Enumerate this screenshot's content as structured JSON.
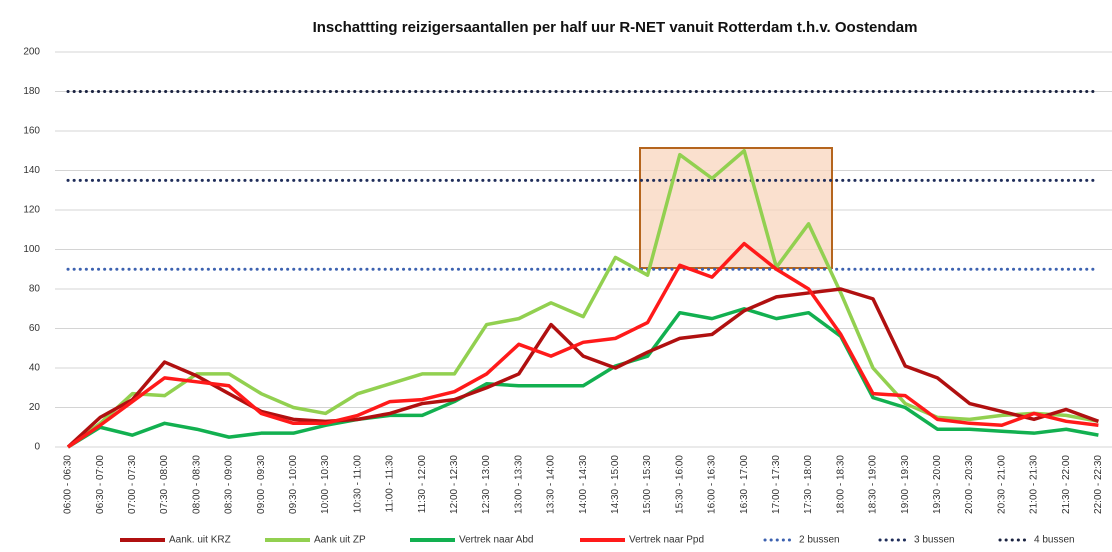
{
  "chart_data": {
    "type": "line",
    "title": "Inschattting reizigersaantallen per half uur R-NET vanuit Rotterdam t.h.v. Oostendam",
    "categories": [
      "06:00 - 06:30",
      "06:30 - 07:00",
      "07:00 - 07:30",
      "07:30 - 08:00",
      "08:00 - 08:30",
      "08:30 - 09:00",
      "09:00 - 09:30",
      "09:30 - 10:00",
      "10:00 - 10:30",
      "10:30 - 11:00",
      "11:00 - 11:30",
      "11:30 - 12:00",
      "12:00 - 12:30",
      "12:30 - 13:00",
      "13:00 - 13:30",
      "13:30 - 14:00",
      "14:00 - 14:30",
      "14:30 - 15:00",
      "15:00 - 15:30",
      "15:30 - 16:00",
      "16:00 - 16:30",
      "16:30 - 17:00",
      "17:00 - 17:30",
      "17:30 - 18:00",
      "18:00 - 18:30",
      "18:30 - 19:00",
      "19:00 - 19:30",
      "19:30 - 20:00",
      "20:00 - 20:30",
      "20:30 - 21:00",
      "21:00 - 21:30",
      "21:30 - 22:00",
      "22:00 - 22:30"
    ],
    "series": [
      {
        "name": "Aank. uit KRZ",
        "color": "#b01010",
        "values": [
          0,
          15,
          24,
          43,
          36,
          27,
          18,
          14,
          13,
          14,
          17,
          22,
          24,
          30,
          37,
          62,
          46,
          40,
          48,
          55,
          57,
          69,
          76,
          78,
          80,
          75,
          41,
          35,
          22,
          18,
          14,
          19,
          13
        ]
      },
      {
        "name": "Aank uit ZP",
        "color": "#92d050",
        "values": [
          0,
          12,
          27,
          26,
          37,
          37,
          27,
          20,
          17,
          27,
          32,
          37,
          37,
          62,
          65,
          73,
          66,
          96,
          87,
          148,
          136,
          150,
          91,
          113,
          78,
          40,
          22,
          15,
          14,
          16,
          17,
          16,
          13
        ]
      },
      {
        "name": "Vertrek naar Abd",
        "color": "#12b050",
        "values": [
          0,
          10,
          6,
          12,
          9,
          5,
          7,
          7,
          11,
          14,
          16,
          16,
          23,
          32,
          31,
          31,
          31,
          41,
          46,
          68,
          65,
          70,
          65,
          68,
          56,
          25,
          20,
          9,
          9,
          8,
          7,
          9,
          6
        ]
      },
      {
        "name": "Vertrek naar Ppd",
        "color": "#ff1a1a",
        "values": [
          0,
          11,
          23,
          35,
          33,
          31,
          17,
          12,
          12,
          16,
          23,
          24,
          28,
          37,
          52,
          46,
          53,
          55,
          63,
          92,
          86,
          103,
          90,
          80,
          57,
          27,
          26,
          14,
          12,
          11,
          17,
          13,
          11
        ]
      },
      {
        "name": "2 bussen",
        "color": "#3d62b0",
        "dash": "dotted",
        "values": [
          90,
          90,
          90,
          90,
          90,
          90,
          90,
          90,
          90,
          90,
          90,
          90,
          90,
          90,
          90,
          90,
          90,
          90,
          90,
          90,
          90,
          90,
          90,
          90,
          90,
          90,
          90,
          90,
          90,
          90,
          90,
          90,
          90
        ]
      },
      {
        "name": "3 bussen",
        "color": "#1f2d5a",
        "dash": "dotted",
        "values": [
          135,
          135,
          135,
          135,
          135,
          135,
          135,
          135,
          135,
          135,
          135,
          135,
          135,
          135,
          135,
          135,
          135,
          135,
          135,
          135,
          135,
          135,
          135,
          135,
          135,
          135,
          135,
          135,
          135,
          135,
          135,
          135,
          135
        ]
      },
      {
        "name": "4 bussen",
        "color": "#1a2240",
        "dash": "dotted",
        "values": [
          180,
          180,
          180,
          180,
          180,
          180,
          180,
          180,
          180,
          180,
          180,
          180,
          180,
          180,
          180,
          180,
          180,
          180,
          180,
          180,
          180,
          180,
          180,
          180,
          180,
          180,
          180,
          180,
          180,
          180,
          180,
          180,
          180
        ]
      }
    ],
    "ylim": [
      0,
      200
    ],
    "yticks": [
      0,
      20,
      40,
      60,
      80,
      100,
      120,
      140,
      160,
      180,
      200
    ],
    "grid": true,
    "legend": "bottom"
  }
}
